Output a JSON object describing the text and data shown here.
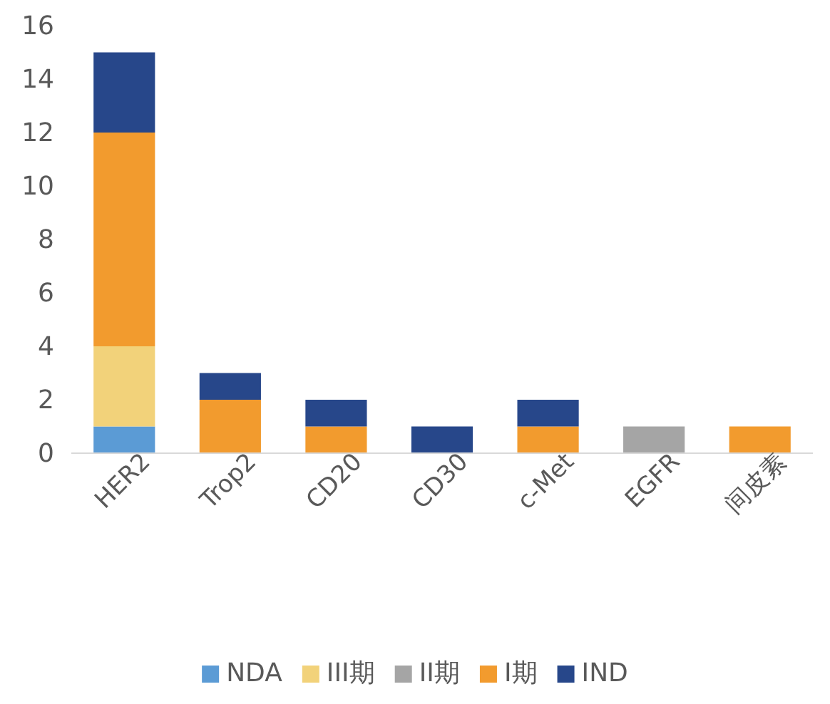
{
  "chart_data": {
    "type": "bar",
    "stacked": true,
    "categories": [
      "HER2",
      "Trop2",
      "CD20",
      "CD30",
      "c-Met",
      "EGFR",
      "间皮素"
    ],
    "series": [
      {
        "name": "NDA",
        "color": "#5b9bd5",
        "values": [
          1,
          0,
          0,
          0,
          0,
          0,
          0
        ]
      },
      {
        "name": "III期",
        "color": "#f2d27a",
        "values": [
          3,
          0,
          0,
          0,
          0,
          0,
          0
        ]
      },
      {
        "name": "II期",
        "color": "#a5a5a5",
        "values": [
          0,
          0,
          0,
          0,
          0,
          1,
          0
        ]
      },
      {
        "name": "I期",
        "color": "#f29b2e",
        "values": [
          8,
          2,
          1,
          0,
          1,
          0,
          1
        ]
      },
      {
        "name": "IND",
        "color": "#27478a",
        "values": [
          3,
          1,
          1,
          1,
          1,
          0,
          0
        ]
      }
    ],
    "ylim": [
      0,
      16
    ],
    "yticks": [
      0,
      2,
      4,
      6,
      8,
      10,
      12,
      14,
      16
    ],
    "grid": false,
    "legend": "bottom"
  }
}
